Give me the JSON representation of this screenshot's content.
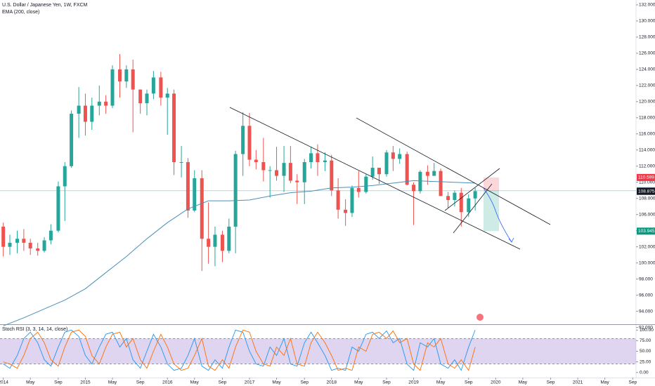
{
  "chart_data": {
    "type": "candlestick",
    "title": "U.S. Dollar / Japanese Yen, 1W, FXCM",
    "indicator": "EMA (200, close)",
    "x": [
      2014,
      2014.08,
      2014.17,
      2014.25,
      2014.33,
      2014.42,
      2014.5,
      2014.58,
      2014.67,
      2014.75,
      2014.83,
      2014.92,
      2015,
      2015.08,
      2015.17,
      2015.25,
      2015.33,
      2015.42,
      2015.5,
      2015.58,
      2015.67,
      2015.75,
      2015.83,
      2015.92,
      2016,
      2016.08,
      2016.17,
      2016.25,
      2016.33,
      2016.42,
      2016.5,
      2016.58,
      2016.67,
      2016.75,
      2016.83,
      2016.92,
      2017,
      2017.08,
      2017.17,
      2017.25,
      2017.33,
      2017.42,
      2017.5,
      2017.58,
      2017.67,
      2017.75,
      2017.83,
      2017.92,
      2018,
      2018.08,
      2018.17,
      2018.25,
      2018.33,
      2018.42,
      2018.5,
      2018.58,
      2018.67,
      2018.75,
      2018.83,
      2018.92,
      2019,
      2019.08,
      2019.17,
      2019.25,
      2019.33,
      2019.42,
      2019.5,
      2019.58,
      2019.67,
      2019.75
    ],
    "open": [
      104.5,
      102,
      102.5,
      103,
      102.5,
      101.8,
      101.5,
      102.8,
      104,
      109.5,
      112,
      118.5,
      119.5,
      117.5,
      119.5,
      120,
      119.5,
      124,
      122.5,
      124,
      121.5,
      119.8,
      121,
      123,
      120.5,
      121,
      112.5,
      112.5,
      106.5,
      110.5,
      103,
      102,
      103.5,
      101.5,
      104.5,
      113.5,
      117,
      112.8,
      112.5,
      111.5,
      111.5,
      110.8,
      112.4,
      110.2,
      110,
      112.5,
      113.6,
      112.5,
      112.7,
      109,
      106.6,
      106.2,
      109.3,
      108.8,
      110.7,
      111.8,
      111,
      113.7,
      112.9,
      113.5,
      109.7,
      108.9,
      111.3,
      110.8,
      111.4,
      108.3,
      107.8,
      108.7,
      106.3,
      108
    ],
    "high": [
      105,
      103.5,
      104,
      104.2,
      103,
      102.5,
      103.2,
      104.8,
      110.1,
      112.5,
      118.9,
      121.8,
      121,
      120.5,
      122,
      120.8,
      124.5,
      125.9,
      124.5,
      125.2,
      121.5,
      121.5,
      123.8,
      123.7,
      121.7,
      121.5,
      114.5,
      113,
      111.5,
      111.5,
      107.5,
      104.5,
      104,
      105.5,
      113.9,
      118.7,
      118.6,
      114,
      115.5,
      112,
      114.4,
      114.5,
      114.5,
      111,
      112.9,
      114.4,
      114.7,
      113.7,
      113.4,
      110.5,
      107.9,
      109.6,
      111.4,
      111,
      113.2,
      111.8,
      114,
      114.5,
      114.2,
      113.8,
      110,
      111.5,
      112.1,
      112.4,
      111.7,
      108.8,
      109,
      109.3,
      108.5,
      109.3
    ],
    "low": [
      100.8,
      101,
      101.2,
      101.5,
      101,
      100.9,
      101.3,
      102.3,
      103.8,
      105.2,
      111.8,
      115.5,
      115.8,
      116.5,
      118.3,
      118.5,
      119.2,
      120.5,
      121.7,
      116.2,
      118.5,
      118.3,
      120.3,
      119.5,
      115.9,
      110.9,
      110.6,
      105.6,
      106.3,
      99,
      99.9,
      99.6,
      100.1,
      101.2,
      101.2,
      110.8,
      112,
      111.6,
      110.1,
      108.1,
      110.2,
      108.8,
      109.9,
      107.3,
      107.3,
      111.7,
      110.8,
      111.4,
      108.3,
      105.5,
      104.6,
      105.7,
      108.1,
      108.6,
      110.3,
      109.8,
      110.7,
      111.4,
      112.3,
      109.6,
      104.7,
      108.6,
      109.7,
      110.8,
      108.3,
      106.8,
      107,
      104.5,
      105.7,
      106.5
    ],
    "close": [
      102,
      102.5,
      103,
      102.5,
      101.8,
      101.5,
      102.8,
      104,
      109.5,
      112,
      118.5,
      119.5,
      117.5,
      119.5,
      120,
      119.5,
      124,
      122.5,
      124,
      121.5,
      119.8,
      121,
      123,
      120.5,
      121,
      112.5,
      112.5,
      106.5,
      110.5,
      103,
      102,
      103.5,
      101.5,
      104.5,
      113.5,
      117,
      112.8,
      112.5,
      111.5,
      111.5,
      110.8,
      112.4,
      110.2,
      110,
      112.5,
      113.6,
      112.5,
      112.7,
      109,
      106.6,
      106.2,
      109.3,
      108.8,
      110.7,
      111.8,
      111,
      113.7,
      112.9,
      113.5,
      109.7,
      108.9,
      111.3,
      110.8,
      111.4,
      108.3,
      107.8,
      108.7,
      106.3,
      108,
      108.9
    ],
    "up_color": "#26a69a",
    "down_color": "#ef5350",
    "ema": {
      "color": "#4a90b8",
      "x": [
        2014,
        2014.25,
        2014.5,
        2014.75,
        2015,
        2015.25,
        2015.5,
        2015.75,
        2016,
        2016.25,
        2016.5,
        2016.75,
        2017,
        2017.25,
        2017.5,
        2017.75,
        2018,
        2018.25,
        2018.5,
        2018.75,
        2019,
        2019.25,
        2019.5,
        2019.75
      ],
      "values": [
        92.2,
        93.2,
        94.3,
        95.4,
        96.8,
        98.8,
        100.8,
        103,
        105,
        106.7,
        107.7,
        107.7,
        107.8,
        108.3,
        108.7,
        108.9,
        109.3,
        109.4,
        109.6,
        109.9,
        110.2,
        110.1,
        110,
        109.9
      ]
    },
    "xlim": [
      2013.96,
      2021.71
    ],
    "xticks": [
      2014,
      {
        "value": 2014.33,
        "label": "May"
      },
      {
        "value": 2014.67,
        "label": "Sep"
      },
      2015,
      {
        "value": 2015.33,
        "label": "May"
      },
      {
        "value": 2015.67,
        "label": "Sep"
      },
      2016,
      {
        "value": 2016.33,
        "label": "May"
      },
      {
        "value": 2016.67,
        "label": "Sep"
      },
      2017,
      {
        "value": 2017.33,
        "label": "May"
      },
      {
        "value": 2017.67,
        "label": "Sep"
      },
      2018,
      {
        "value": 2018.33,
        "label": "May"
      },
      {
        "value": 2018.67,
        "label": "Sep"
      },
      2019,
      {
        "value": 2019.33,
        "label": "May"
      },
      {
        "value": 2019.67,
        "label": "Sep"
      },
      2020,
      {
        "value": 2020.33,
        "label": "May"
      },
      {
        "value": 2020.67,
        "label": "Sep"
      },
      2021,
      {
        "value": 2021.33,
        "label": "May"
      },
      {
        "value": 2021.67,
        "label": "Sep"
      }
    ],
    "ylim": [
      92.4,
      132.6
    ],
    "yticks": [
      {
        "value": 92,
        "label": "92.000"
      },
      {
        "value": 94,
        "label": "94.000"
      },
      {
        "value": 96,
        "label": "96.000"
      },
      {
        "value": 98,
        "label": "98.000"
      },
      {
        "value": 100,
        "label": "100.000"
      },
      {
        "value": 102,
        "label": "102.000"
      },
      {
        "value": 104,
        "label": "104.000"
      },
      {
        "value": 106,
        "label": "106.000"
      },
      {
        "value": 108,
        "label": "108.000"
      },
      {
        "value": 110,
        "label": "110.000"
      },
      {
        "value": 112,
        "label": "112.000"
      },
      {
        "value": 114,
        "label": "114.000"
      },
      {
        "value": 116,
        "label": "116.000"
      },
      {
        "value": 118,
        "label": "118.000"
      },
      {
        "value": 120,
        "label": "120.000"
      },
      {
        "value": 122,
        "label": "122.000"
      },
      {
        "value": 124,
        "label": "124.000"
      },
      {
        "value": 126,
        "label": "126.000"
      },
      {
        "value": 128,
        "label": "128.000"
      },
      {
        "value": 130,
        "label": "130.000"
      },
      {
        "value": 132,
        "label": "132.000"
      }
    ],
    "price_labels": [
      {
        "value": 110.599,
        "color": "#f23645"
      },
      {
        "value": 108.949,
        "color": "#26a69a"
      },
      {
        "value": 108.875,
        "color": "#131722"
      },
      {
        "value": 103.945,
        "color": "#089981"
      }
    ],
    "stoch": {
      "title": "Stoch RSI (3, 3, 14, 14, close)",
      "ylim": [
        -12,
        112
      ],
      "yticks": [
        {
          "value": 0,
          "label": "0.00"
        },
        {
          "value": 25,
          "label": "25.00"
        },
        {
          "value": 50,
          "label": "50.00"
        },
        {
          "value": 75,
          "label": "75.00"
        },
        {
          "value": 100,
          "label": "100.00"
        }
      ],
      "bands": [
        20,
        80
      ],
      "series": [
        {
          "name": "K",
          "color": "#2196f3",
          "values": [
            20,
            10,
            40,
            80,
            95,
            70,
            30,
            15,
            60,
            95,
            100,
            85,
            40,
            20,
            60,
            90,
            95,
            60,
            80,
            30,
            10,
            50,
            90,
            60,
            20,
            5,
            10,
            40,
            80,
            15,
            5,
            30,
            10,
            60,
            100,
            95,
            50,
            20,
            15,
            60,
            40,
            80,
            20,
            15,
            70,
            95,
            70,
            40,
            5,
            10,
            5,
            60,
            50,
            90,
            95,
            80,
            98,
            70,
            80,
            20,
            5,
            70,
            60,
            80,
            20,
            10,
            30,
            5,
            60,
            100
          ]
        },
        {
          "name": "D",
          "color": "#ff6d00",
          "values": [
            25,
            20,
            10,
            40,
            80,
            95,
            70,
            30,
            15,
            60,
            95,
            100,
            85,
            40,
            20,
            60,
            90,
            95,
            60,
            80,
            30,
            10,
            50,
            90,
            60,
            20,
            5,
            10,
            40,
            80,
            15,
            5,
            30,
            10,
            60,
            100,
            95,
            50,
            20,
            15,
            60,
            40,
            80,
            20,
            15,
            70,
            95,
            70,
            40,
            5,
            10,
            5,
            60,
            50,
            90,
            95,
            80,
            98,
            70,
            80,
            20,
            5,
            70,
            60,
            80,
            20,
            10,
            30,
            5,
            60
          ]
        }
      ]
    }
  }
}
